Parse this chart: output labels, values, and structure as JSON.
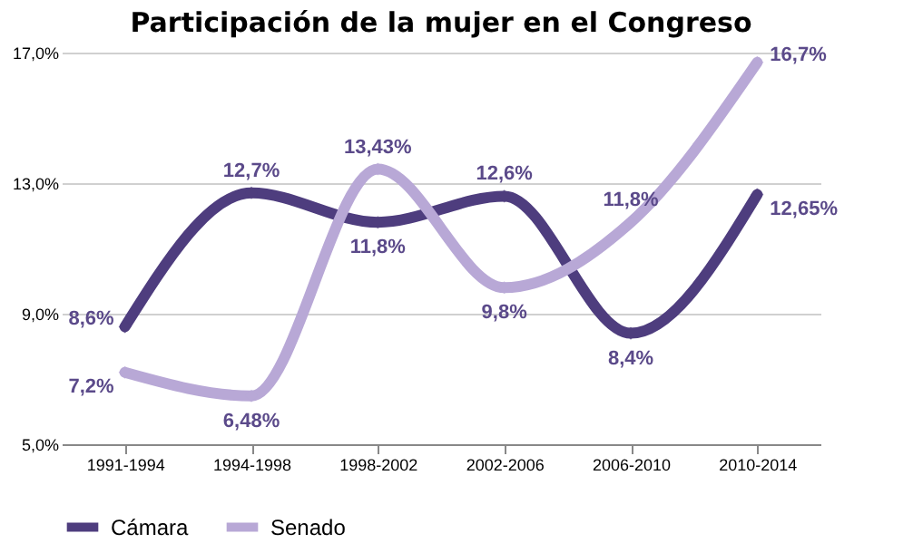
{
  "chart_data": {
    "type": "line",
    "title": "Participación de la mujer en el Congreso",
    "categories": [
      "1991-1994",
      "1994-1998",
      "1998-2002",
      "2002-2006",
      "2006-2010",
      "2010-2014"
    ],
    "series": [
      {
        "name": "Cámara",
        "color": "#4e3d7e",
        "values": [
          8.6,
          12.7,
          11.8,
          12.6,
          8.4,
          12.65
        ],
        "value_labels": [
          "8,6%",
          "12,7%",
          "11,8%",
          "12,6%",
          "8,4%",
          "12,65%"
        ]
      },
      {
        "name": "Senado",
        "color": "#b8a8d6",
        "values": [
          7.2,
          6.48,
          13.43,
          9.8,
          11.8,
          16.7
        ],
        "value_labels": [
          "7,2%",
          "6,48%",
          "13,43%",
          "9,8%",
          "11,8%",
          "16,7%"
        ]
      }
    ],
    "ylim": [
      5,
      17
    ],
    "yticks": [
      {
        "value": 5,
        "label": "5,0%"
      },
      {
        "value": 9,
        "label": "9,0%"
      },
      {
        "value": 13,
        "label": "13,0%"
      },
      {
        "value": 17,
        "label": "17,0%"
      }
    ],
    "grid": "y",
    "legend": "bottom",
    "marker": "diamond",
    "line_style": "solid"
  }
}
